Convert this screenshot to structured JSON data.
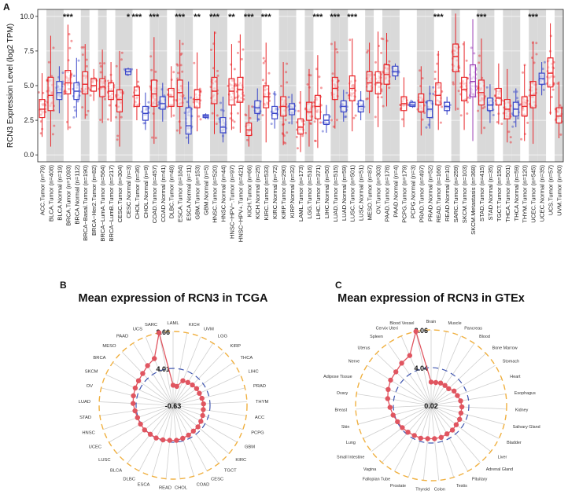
{
  "panel_labels": {
    "a": "A",
    "b": "B",
    "c": "C"
  },
  "chart_data": [
    {
      "type": "box",
      "ylabel": "RCN3 Expression Level (log2 TPM)",
      "ylim": [
        -0.5,
        10.5
      ],
      "yticks": [
        0.0,
        2.5,
        5.0,
        7.5,
        10.0
      ],
      "ytick_labels": [
        "0.0",
        "2.5",
        "5.0",
        "7.5",
        "10.0"
      ],
      "tumor_color": "#e8262a",
      "normal_color": "#3a46c9",
      "metastasis_color": "#9b3fb5",
      "shade_color": "#d9d9d9",
      "groups": [
        {
          "label": "ACC.Tumor (n=79)",
          "kind": "tumor",
          "median": 3.3,
          "q1": 2.7,
          "q3": 4.0,
          "lo": 1.3,
          "hi": 5.9,
          "shade": false,
          "sig": ""
        },
        {
          "label": "BLCA.Tumor (n=408)",
          "kind": "tumor",
          "median": 4.3,
          "q1": 3.2,
          "q3": 5.6,
          "lo": 0.6,
          "hi": 8.6,
          "shade": true,
          "sig": ""
        },
        {
          "label": "BLCA.Normal (n=19)",
          "kind": "normal",
          "median": 4.5,
          "q1": 4.0,
          "q3": 5.3,
          "lo": 3.0,
          "hi": 6.4,
          "shade": true,
          "sig": ""
        },
        {
          "label": "BRCA.Tumor (n=1093)",
          "kind": "tumor",
          "median": 5.2,
          "q1": 4.4,
          "q3": 6.1,
          "lo": 1.8,
          "hi": 9.4,
          "shade": false,
          "sig": "***"
        },
        {
          "label": "BRCA.Normal (n=112)",
          "kind": "normal",
          "median": 4.6,
          "q1": 4.0,
          "q3": 5.2,
          "lo": 2.7,
          "hi": 7.0,
          "shade": false,
          "sig": ""
        },
        {
          "label": "BRCA−Basal.Tumor (n=190)",
          "kind": "tumor",
          "median": 5.1,
          "q1": 4.4,
          "q3": 6.0,
          "lo": 2.6,
          "hi": 8.0,
          "shade": true,
          "sig": ""
        },
        {
          "label": "BRCA−Her2.Tumor (n=82)",
          "kind": "tumor",
          "median": 5.0,
          "q1": 4.6,
          "q3": 5.5,
          "lo": 3.9,
          "hi": 6.2,
          "shade": false,
          "sig": ""
        },
        {
          "label": "BRCA−LumA.Tumor (n=564)",
          "kind": "tumor",
          "median": 4.9,
          "q1": 4.2,
          "q3": 5.5,
          "lo": 2.3,
          "hi": 7.6,
          "shade": true,
          "sig": ""
        },
        {
          "label": "BRCA−LumB.Tumor (n=217)",
          "kind": "tumor",
          "median": 4.6,
          "q1": 4.0,
          "q3": 5.2,
          "lo": 2.4,
          "hi": 6.7,
          "shade": false,
          "sig": ""
        },
        {
          "label": "CESC.Tumor (n=304)",
          "kind": "tumor",
          "median": 4.0,
          "q1": 3.1,
          "q3": 4.7,
          "lo": 0.6,
          "hi": 7.5,
          "shade": true,
          "sig": ""
        },
        {
          "label": "CESC.Normal (n=3)",
          "kind": "normal",
          "median": 6.0,
          "q1": 5.8,
          "q3": 6.2,
          "lo": 5.7,
          "hi": 6.3,
          "shade": true,
          "sig": "*"
        },
        {
          "label": "CHOL.Tumor (n=36)",
          "kind": "tumor",
          "median": 4.3,
          "q1": 3.5,
          "q3": 4.9,
          "lo": 2.5,
          "hi": 6.2,
          "shade": false,
          "sig": "***"
        },
        {
          "label": "CHOL.Normal (n=9)",
          "kind": "normal",
          "median": 3.0,
          "q1": 2.5,
          "q3": 3.5,
          "lo": 1.8,
          "hi": 4.5,
          "shade": false,
          "sig": ""
        },
        {
          "label": "COAD.Tumor (n=457)",
          "kind": "tumor",
          "median": 4.4,
          "q1": 3.5,
          "q3": 5.4,
          "lo": 0.8,
          "hi": 8.5,
          "shade": true,
          "sig": "***"
        },
        {
          "label": "COAD.Normal (n=41)",
          "kind": "normal",
          "median": 3.7,
          "q1": 3.3,
          "q3": 4.2,
          "lo": 2.4,
          "hi": 5.2,
          "shade": true,
          "sig": ""
        },
        {
          "label": "DLBC.Tumor (n=48)",
          "kind": "tumor",
          "median": 4.2,
          "q1": 3.5,
          "q3": 4.8,
          "lo": 2.7,
          "hi": 6.4,
          "shade": false,
          "sig": ""
        },
        {
          "label": "ESCA.Tumor (n=184)",
          "kind": "tumor",
          "median": 4.5,
          "q1": 3.5,
          "q3": 5.4,
          "lo": 1.5,
          "hi": 8.3,
          "shade": true,
          "sig": "***"
        },
        {
          "label": "ESCA.Normal (n=11)",
          "kind": "normal",
          "median": 2.1,
          "q1": 1.5,
          "q3": 3.4,
          "lo": 0.8,
          "hi": 5.3,
          "shade": true,
          "sig": ""
        },
        {
          "label": "GBM.Tumor (n=153)",
          "kind": "tumor",
          "median": 4.0,
          "q1": 3.4,
          "q3": 4.7,
          "lo": 1.7,
          "hi": 7.4,
          "shade": false,
          "sig": "**"
        },
        {
          "label": "GBM.Normal (n=5)",
          "kind": "normal",
          "median": 2.8,
          "q1": 2.7,
          "q3": 2.9,
          "lo": 2.6,
          "hi": 3.0,
          "shade": false,
          "sig": ""
        },
        {
          "label": "HNSC.Tumor (n=520)",
          "kind": "tumor",
          "median": 4.6,
          "q1": 3.7,
          "q3": 5.6,
          "lo": 1.5,
          "hi": 8.9,
          "shade": true,
          "sig": "***"
        },
        {
          "label": "HNSC.Normal (n=44)",
          "kind": "normal",
          "median": 2.0,
          "q1": 1.6,
          "q3": 2.7,
          "lo": 0.9,
          "hi": 4.2,
          "shade": true,
          "sig": ""
        },
        {
          "label": "HNSC−HPV−.Tumor (n=97)",
          "kind": "tumor",
          "median": 4.6,
          "q1": 3.6,
          "q3": 5.5,
          "lo": 1.8,
          "hi": 8.0,
          "shade": false,
          "sig": "**"
        },
        {
          "label": "HNSC−HPV+.Tumor (n=421)",
          "kind": "tumor",
          "median": 4.7,
          "q1": 3.8,
          "q3": 5.6,
          "lo": 1.6,
          "hi": 8.7,
          "shade": false,
          "sig": ""
        },
        {
          "label": "KICH.Tumor (n=66)",
          "kind": "tumor",
          "median": 1.8,
          "q1": 1.4,
          "q3": 2.3,
          "lo": 0.6,
          "hi": 3.6,
          "shade": true,
          "sig": "***"
        },
        {
          "label": "KICH.Normal (n=25)",
          "kind": "normal",
          "median": 3.4,
          "q1": 3.0,
          "q3": 3.9,
          "lo": 2.4,
          "hi": 4.8,
          "shade": true,
          "sig": ""
        },
        {
          "label": "KIRC.Tumor (n=533)",
          "kind": "tumor",
          "median": 4.2,
          "q1": 3.4,
          "q3": 5.0,
          "lo": 0.9,
          "hi": 8.1,
          "shade": false,
          "sig": "***"
        },
        {
          "label": "KIRC.Normal (n=72)",
          "kind": "normal",
          "median": 3.0,
          "q1": 2.6,
          "q3": 3.5,
          "lo": 1.9,
          "hi": 4.6,
          "shade": false,
          "sig": ""
        },
        {
          "label": "KIRP.Tumor (n=290)",
          "kind": "tumor",
          "median": 3.5,
          "q1": 2.8,
          "q3": 4.2,
          "lo": 0.7,
          "hi": 6.7,
          "shade": true,
          "sig": ""
        },
        {
          "label": "KIRP.Normal (n=32)",
          "kind": "normal",
          "median": 3.3,
          "q1": 2.9,
          "q3": 3.7,
          "lo": 2.2,
          "hi": 4.4,
          "shade": true,
          "sig": ""
        },
        {
          "label": "LAML.Tumor (n=173)",
          "kind": "tumor",
          "median": 2.0,
          "q1": 1.5,
          "q3": 2.6,
          "lo": 0.2,
          "hi": 4.6,
          "shade": false,
          "sig": ""
        },
        {
          "label": "LGG.Tumor (n=516)",
          "kind": "tumor",
          "median": 3.1,
          "q1": 2.5,
          "q3": 3.8,
          "lo": 0.6,
          "hi": 6.2,
          "shade": true,
          "sig": ""
        },
        {
          "label": "LIHC.Tumor (n=371)",
          "kind": "tumor",
          "median": 3.5,
          "q1": 2.6,
          "q3": 4.3,
          "lo": 0.5,
          "hi": 7.2,
          "shade": false,
          "sig": "***"
        },
        {
          "label": "LIHC.Normal (n=50)",
          "kind": "normal",
          "median": 2.5,
          "q1": 2.2,
          "q3": 2.9,
          "lo": 1.6,
          "hi": 3.6,
          "shade": false,
          "sig": ""
        },
        {
          "label": "LUAD.Tumor (n=515)",
          "kind": "tumor",
          "median": 4.8,
          "q1": 4.0,
          "q3": 5.6,
          "lo": 1.9,
          "hi": 8.2,
          "shade": true,
          "sig": "***"
        },
        {
          "label": "LUAD.Normal (n=59)",
          "kind": "normal",
          "median": 3.5,
          "q1": 3.1,
          "q3": 3.9,
          "lo": 2.4,
          "hi": 4.7,
          "shade": true,
          "sig": ""
        },
        {
          "label": "LUSC.Tumor (n=501)",
          "kind": "tumor",
          "median": 4.8,
          "q1": 3.9,
          "q3": 5.7,
          "lo": 1.7,
          "hi": 8.4,
          "shade": false,
          "sig": "***"
        },
        {
          "label": "LUSC.Normal (n=51)",
          "kind": "normal",
          "median": 3.5,
          "q1": 3.1,
          "q3": 3.9,
          "lo": 2.5,
          "hi": 4.6,
          "shade": false,
          "sig": ""
        },
        {
          "label": "MESO.Tumor (n=87)",
          "kind": "tumor",
          "median": 5.2,
          "q1": 4.6,
          "q3": 6.0,
          "lo": 3.0,
          "hi": 8.1,
          "shade": true,
          "sig": ""
        },
        {
          "label": "OV.Tumor (n=303)",
          "kind": "tumor",
          "median": 5.2,
          "q1": 4.4,
          "q3": 6.0,
          "lo": 2.0,
          "hi": 8.9,
          "shade": false,
          "sig": ""
        },
        {
          "label": "PAAD.Tumor (n=178)",
          "kind": "tumor",
          "median": 5.8,
          "q1": 5.1,
          "q3": 6.5,
          "lo": 3.5,
          "hi": 8.8,
          "shade": true,
          "sig": ""
        },
        {
          "label": "PAAD.Normal (n=4)",
          "kind": "normal",
          "median": 6.0,
          "q1": 5.7,
          "q3": 6.4,
          "lo": 5.4,
          "hi": 6.6,
          "shade": true,
          "sig": ""
        },
        {
          "label": "PCPG.Tumor (n=179)",
          "kind": "tumor",
          "median": 3.7,
          "q1": 3.2,
          "q3": 4.2,
          "lo": 2.0,
          "hi": 5.6,
          "shade": false,
          "sig": ""
        },
        {
          "label": "PCPG.Normal (n=3)",
          "kind": "normal",
          "median": 3.6,
          "q1": 3.5,
          "q3": 3.8,
          "lo": 3.4,
          "hi": 3.9,
          "shade": false,
          "sig": ""
        },
        {
          "label": "PRAD.Tumor (n=497)",
          "kind": "tumor",
          "median": 3.8,
          "q1": 3.1,
          "q3": 4.4,
          "lo": 1.4,
          "hi": 6.4,
          "shade": true,
          "sig": ""
        },
        {
          "label": "PRAD.Normal (n=52)",
          "kind": "normal",
          "median": 3.3,
          "q1": 2.7,
          "q3": 3.9,
          "lo": 1.9,
          "hi": 5.0,
          "shade": true,
          "sig": ""
        },
        {
          "label": "READ.Tumor (n=166)",
          "kind": "tumor",
          "median": 4.3,
          "q1": 3.6,
          "q3": 5.2,
          "lo": 1.8,
          "hi": 7.5,
          "shade": false,
          "sig": "***"
        },
        {
          "label": "READ.Normal (n=10)",
          "kind": "normal",
          "median": 3.5,
          "q1": 3.2,
          "q3": 3.8,
          "lo": 2.9,
          "hi": 4.2,
          "shade": false,
          "sig": ""
        },
        {
          "label": "SARC.Tumor (n=259)",
          "kind": "tumor",
          "median": 7.1,
          "q1": 6.0,
          "q3": 8.0,
          "lo": 3.2,
          "hi": 10.2,
          "shade": true,
          "sig": ""
        },
        {
          "label": "SKCM.Tumor (n=103)",
          "kind": "tumor",
          "median": 4.7,
          "q1": 3.9,
          "q3": 5.6,
          "lo": 1.8,
          "hi": 8.2,
          "shade": false,
          "sig": ""
        },
        {
          "label": "SKCM.Metastasis (n=368)",
          "kind": "metastasis",
          "median": 5.3,
          "q1": 4.2,
          "q3": 6.5,
          "lo": 1.0,
          "hi": 9.8,
          "shade": false,
          "sig": ""
        },
        {
          "label": "STAD.Tumor (n=415)",
          "kind": "tumor",
          "median": 4.5,
          "q1": 3.6,
          "q3": 5.4,
          "lo": 1.5,
          "hi": 8.4,
          "shade": true,
          "sig": "***"
        },
        {
          "label": "STAD.Normal (n=35)",
          "kind": "normal",
          "median": 3.6,
          "q1": 3.2,
          "q3": 4.1,
          "lo": 2.3,
          "hi": 5.1,
          "shade": true,
          "sig": ""
        },
        {
          "label": "TGCT.Tumor (n=150)",
          "kind": "tumor",
          "median": 4.1,
          "q1": 3.6,
          "q3": 4.8,
          "lo": 2.2,
          "hi": 6.6,
          "shade": false,
          "sig": ""
        },
        {
          "label": "THCA.Tumor (n=501)",
          "kind": "tumor",
          "median": 3.3,
          "q1": 2.6,
          "q3": 4.0,
          "lo": 0.9,
          "hi": 6.2,
          "shade": true,
          "sig": ""
        },
        {
          "label": "THCA.Normal (n=59)",
          "kind": "normal",
          "median": 3.3,
          "q1": 2.8,
          "q3": 3.8,
          "lo": 2.0,
          "hi": 4.8,
          "shade": true,
          "sig": ""
        },
        {
          "label": "THYM.Tumor (n=120)",
          "kind": "tumor",
          "median": 3.5,
          "q1": 2.8,
          "q3": 4.2,
          "lo": 1.0,
          "hi": 6.5,
          "shade": false,
          "sig": ""
        },
        {
          "label": "UCEC.Tumor (n=545)",
          "kind": "tumor",
          "median": 4.3,
          "q1": 3.4,
          "q3": 5.3,
          "lo": 0.8,
          "hi": 8.2,
          "shade": true,
          "sig": "***"
        },
        {
          "label": "UCEC.Normal (n=35)",
          "kind": "normal",
          "median": 5.5,
          "q1": 5.1,
          "q3": 5.9,
          "lo": 4.3,
          "hi": 6.7,
          "shade": true,
          "sig": ""
        },
        {
          "label": "UCS.Tumor (n=57)",
          "kind": "tumor",
          "median": 5.9,
          "q1": 4.9,
          "q3": 7.0,
          "lo": 2.9,
          "hi": 9.5,
          "shade": false,
          "sig": ""
        },
        {
          "label": "UVM.Tumor (n=80)",
          "kind": "tumor",
          "median": 2.8,
          "q1": 2.3,
          "q3": 3.4,
          "lo": 1.2,
          "hi": 5.3,
          "shade": true,
          "sig": ""
        }
      ]
    },
    {
      "type": "radar",
      "title": "Mean expression of RCN3 in TCGA",
      "ring_labels": [
        "-0.63",
        "4.01",
        "8.66"
      ],
      "rmin": -0.63,
      "rmax": 8.66,
      "categories": [
        "LAML",
        "KICH",
        "UVM",
        "LGG",
        "KIRP",
        "THCA",
        "LIHC",
        "PRAD",
        "THYM",
        "ACC",
        "PCPG",
        "GBM",
        "KIRC",
        "TGCT",
        "CESC",
        "COAD",
        "CHOL",
        "READ",
        "ESCA",
        "DLBC",
        "BLCA",
        "LUSC",
        "UCEC",
        "HNSC",
        "STAD",
        "LUAD",
        "OV",
        "SKCM",
        "BRCA",
        "MESO",
        "PAAD",
        "UCS",
        "SARC"
      ],
      "values": [
        1.9,
        1.8,
        2.7,
        2.8,
        2.9,
        3.0,
        3.0,
        3.1,
        3.2,
        3.2,
        3.3,
        3.4,
        3.5,
        3.5,
        3.6,
        3.7,
        3.8,
        3.8,
        3.9,
        4.0,
        4.0,
        4.1,
        4.1,
        4.1,
        4.2,
        4.4,
        4.5,
        4.6,
        4.7,
        4.9,
        5.3,
        5.7,
        8.66
      ],
      "point_color": "#e05560",
      "ring_color": "#f0b040",
      "mid_color": "#4056b0"
    },
    {
      "type": "radar",
      "title": "Mean expression of RCN3 in GTEx",
      "ring_labels": [
        "0.02",
        "4.04",
        "8.06"
      ],
      "rmin": 0.02,
      "rmax": 8.06,
      "categories": [
        "Brain",
        "Muscle",
        "Pancreas",
        "Blood",
        "Bone Marrow",
        "Stomach",
        "Heart",
        "Esophagus",
        "Kidney",
        "Salivary Gland",
        "Bladder",
        "Liver",
        "Adrenal Gland",
        "Pituitary",
        "Testis",
        "Colon",
        "Thyroid",
        "Prostate",
        "Fallopian Tube",
        "Vagina",
        "Small Intestine",
        "Lung",
        "Skin",
        "Breast",
        "Ovary",
        "Adipose Tissue",
        "Nerve",
        "Uterus",
        "Spleen",
        "Cervix Uteri",
        "Blood Vessel"
      ],
      "values": [
        2.5,
        2.5,
        2.6,
        2.6,
        2.6,
        2.9,
        3.0,
        3.2,
        3.3,
        3.3,
        3.4,
        3.4,
        3.5,
        3.5,
        3.6,
        3.6,
        3.6,
        3.7,
        3.7,
        3.8,
        3.9,
        4.0,
        4.2,
        4.4,
        4.7,
        4.9,
        5.1,
        5.2,
        5.5,
        5.8,
        8.06
      ],
      "point_color": "#e05560",
      "ring_color": "#f0b040",
      "mid_color": "#4056b0"
    }
  ]
}
